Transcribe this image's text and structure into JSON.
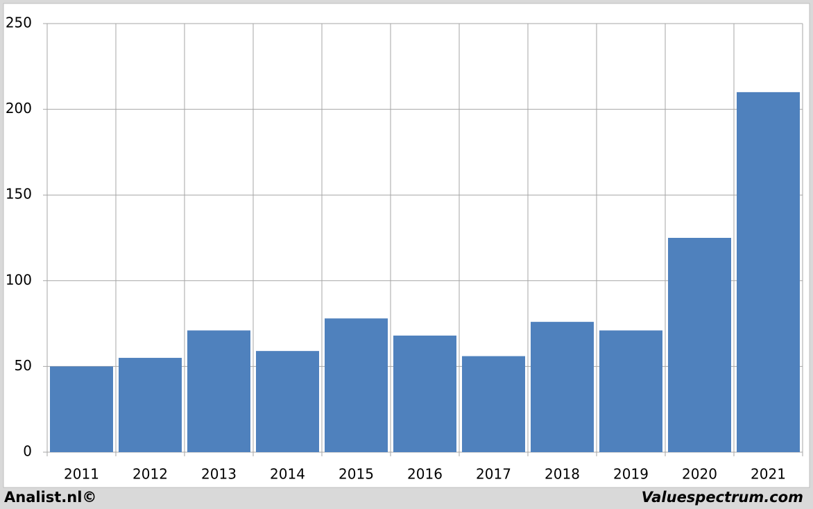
{
  "chart_data": {
    "type": "bar",
    "categories": [
      "2011",
      "2012",
      "2013",
      "2014",
      "2015",
      "2016",
      "2017",
      "2018",
      "2019",
      "2020",
      "2021"
    ],
    "values": [
      50,
      55,
      71,
      59,
      78,
      68,
      56,
      76,
      71,
      125,
      210
    ],
    "color": "#4f81bd",
    "ylim": [
      0,
      250
    ],
    "yticks": [
      0,
      50,
      100,
      150,
      200,
      250
    ],
    "grid": true
  },
  "footer": {
    "left": "Analist.nl©",
    "right": "Valuespectrum.com"
  }
}
